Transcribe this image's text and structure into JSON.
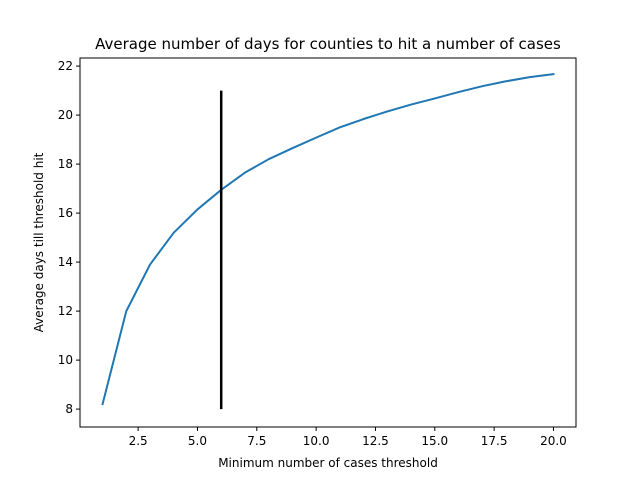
{
  "chart_data": {
    "type": "line",
    "title": "Average number of days for counties to hit a number of cases",
    "xlabel": "Minimum number of cases threshold",
    "ylabel": "Average days till threshold hit",
    "xlim": [
      0.05,
      20.95
    ],
    "ylim": [
      7.27,
      22.33
    ],
    "xticks": [
      2.5,
      5.0,
      7.5,
      10.0,
      12.5,
      15.0,
      17.5,
      20.0
    ],
    "xtick_labels": [
      "2.5",
      "5.0",
      "7.5",
      "10.0",
      "12.5",
      "15.0",
      "17.5",
      "20.0"
    ],
    "yticks": [
      8,
      10,
      12,
      14,
      16,
      18,
      20,
      22
    ],
    "ytick_labels": [
      "8",
      "10",
      "12",
      "14",
      "16",
      "18",
      "20",
      "22"
    ],
    "grid": false,
    "series": [
      {
        "color": "#1f77b4",
        "x": [
          1,
          2,
          3,
          4,
          5,
          6,
          7,
          8,
          9,
          10,
          11,
          12,
          13,
          14,
          15,
          16,
          17,
          18,
          19,
          20
        ],
        "y": [
          8.2,
          12.0,
          13.9,
          15.2,
          16.15,
          16.95,
          17.65,
          18.2,
          18.65,
          19.08,
          19.5,
          19.84,
          20.15,
          20.43,
          20.68,
          20.94,
          21.18,
          21.38,
          21.55,
          21.67
        ]
      }
    ],
    "vline": {
      "x": 6,
      "ymin": 8,
      "ymax": 21,
      "color": "#000000"
    }
  }
}
